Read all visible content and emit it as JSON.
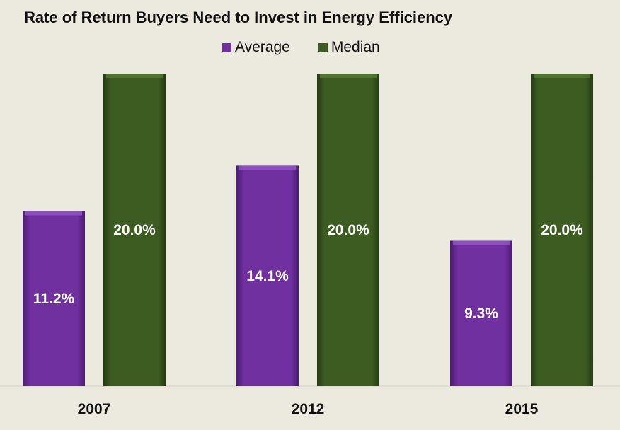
{
  "chart_data": {
    "type": "bar",
    "title": "Rate of Return Buyers Need to Invest in Energy Efficiency",
    "categories": [
      "2007",
      "2012",
      "2015"
    ],
    "series": [
      {
        "name": "Average",
        "values": [
          11.2,
          14.1,
          9.3
        ],
        "labels": [
          "11.2%",
          "14.1%",
          "9.3%"
        ],
        "color": "#7030a0"
      },
      {
        "name": "Median",
        "values": [
          20.0,
          20.0,
          20.0
        ],
        "labels": [
          "20.0%",
          "20.0%",
          "20.0%"
        ],
        "color": "#3d5c22"
      }
    ],
    "ylim": [
      0,
      20
    ],
    "grid": false,
    "legend_position": "top"
  }
}
